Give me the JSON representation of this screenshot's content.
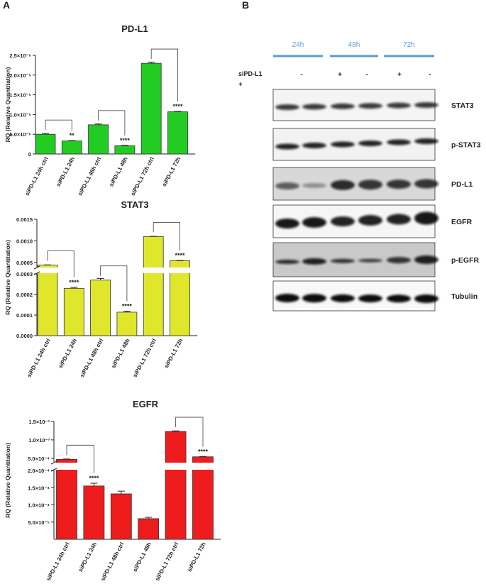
{
  "panel_labels": [
    "A",
    "B"
  ],
  "chart_data": [
    {
      "type": "bar",
      "title": "PD-L1",
      "y_label": "RQ (Relative Quantitation)",
      "categories": [
        "siPD-L1 24h ctrl",
        "siPD-L1 24h",
        "siPD-L1 48h ctrl",
        "siPD-L1 48h",
        "siPD-L1 72h ctrl",
        "siPD-L1 72h"
      ],
      "values": [
        5e-06,
        3.3e-06,
        7.4e-06,
        2.1e-06,
        2.3e-05,
        1.07e-05
      ],
      "errors": [
        2e-07,
        1e-07,
        2e-07,
        1e-07,
        3e-07,
        1e-07
      ],
      "significance": [
        null,
        "**",
        null,
        "****",
        null,
        "****"
      ],
      "color": "#22cc22",
      "ylim": [
        0,
        2.5e-05
      ],
      "yticks": [
        0,
        {
          "value": 5e-06,
          "label": "5.0×10⁻⁶"
        },
        {
          "value": 1e-05,
          "label": "1.0×10⁻⁵"
        },
        {
          "value": 1.5e-05,
          "label": "1.5×10⁻⁵"
        },
        {
          "value": 2e-05,
          "label": "2.0×10⁻⁵"
        },
        {
          "value": 2.5e-05,
          "label": "2.5×10⁻⁵"
        }
      ]
    },
    {
      "type": "bar",
      "title": "STAT3",
      "y_label": "RQ (Relative Quantitation)",
      "categories": [
        "siPD-L1 24h ctrl",
        "siPD-L1 24h",
        "siPD-L1 48h ctrl",
        "siPD-L1 48h",
        "siPD-L1 72h ctrl",
        "siPD-L1 72h"
      ],
      "values": [
        0.00044,
        0.00023,
        0.00027,
        0.000114,
        0.0011,
        0.00054
      ],
      "errors": [
        5e-06,
        5e-06,
        8e-06,
        5e-06,
        6e-06,
        8e-06
      ],
      "significance": [
        null,
        "****",
        null,
        "****",
        null,
        "****"
      ],
      "color": "#dfe62c",
      "ylim": [
        0,
        0.0015
      ],
      "ybreak": [
        0.0003,
        0.0004
      ],
      "yticks": [
        {
          "value": 0,
          "label": "0.0000"
        },
        0.0001,
        0.0002,
        0.0003,
        0.0005,
        {
          "value": 0.001,
          "label": "0.0010"
        },
        0.0015
      ]
    },
    {
      "type": "bar",
      "title": "EGFR",
      "y_label": "RQ (Relative Quantitation)",
      "categories": [
        "siPD-L1 24h ctrl",
        "siPD-L1 24h",
        "siPD-L1 48h ctrl",
        "siPD-L1 48h",
        "siPD-L1 72h ctrl",
        "siPD-L1 72h"
      ],
      "values": [
        0.00047,
        0.000155,
        0.000132,
        6e-05,
        0.00123,
        0.00054
      ],
      "errors": [
        1e-05,
        8e-06,
        8e-06,
        4e-06,
        1.5e-05,
        6e-06
      ],
      "significance": [
        null,
        "****",
        null,
        null,
        null,
        "****"
      ],
      "color": "#ee1c1c",
      "ylim": [
        0,
        0.0015
      ],
      "ybreak": [
        0.0002,
        0.0004
      ],
      "yticks": [
        {
          "value": 5e-05,
          "label": "5.0×10⁻⁵"
        },
        {
          "value": 0.0001,
          "label": "1.0×10⁻⁴"
        },
        {
          "value": 0.00015,
          "label": "1.5×10⁻⁴"
        },
        {
          "value": 0.0002,
          "label": "2.0×10⁻⁴"
        },
        {
          "value": 0.0005,
          "label": "5.0×10⁻⁴"
        },
        {
          "value": 0.001,
          "label": "1.0×10⁻³"
        },
        {
          "value": 0.0015,
          "label": "1.5×10⁻³"
        }
      ]
    }
  ],
  "blot": {
    "time_labels": [
      "24h",
      "48h",
      "72h"
    ],
    "row_label": "siPD-L1",
    "treatment_marks": [
      "-",
      "+",
      "-",
      "+",
      "-"
    ],
    "second_line": "+",
    "proteins": [
      "STAT3",
      "p-STAT3",
      "PD-L1",
      "EGFR",
      "p-EGFR",
      "Tubulin"
    ]
  }
}
